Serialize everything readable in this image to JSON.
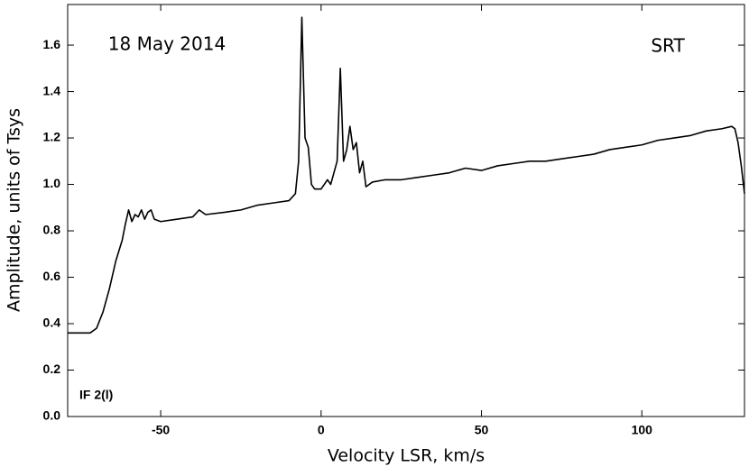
{
  "chart_data": {
    "type": "line",
    "xlabel": "Velocity LSR, km/s",
    "ylabel": "Amplitude, units of Tsys",
    "annotations": [
      "18 May 2014",
      "SRT",
      "IF 2(l)"
    ],
    "x": [
      -79,
      -72,
      -70,
      -68,
      -66,
      -64,
      -62,
      -61,
      -60,
      -59,
      -58,
      -57,
      -56,
      -55,
      -54,
      -53,
      -52,
      -50,
      -45,
      -40,
      -38,
      -36,
      -30,
      -25,
      -20,
      -15,
      -10,
      -8,
      -7,
      -6,
      -5,
      -4,
      -3,
      -2,
      0,
      2,
      3,
      5,
      6,
      7,
      8,
      9,
      10,
      11,
      12,
      13,
      14,
      16,
      20,
      25,
      30,
      35,
      40,
      45,
      50,
      55,
      60,
      65,
      70,
      75,
      80,
      85,
      90,
      95,
      100,
      105,
      110,
      115,
      120,
      125,
      128,
      129,
      130,
      131,
      132
    ],
    "series": [
      {
        "name": "IF 2(l)",
        "color": "#000000",
        "values": [
          0.36,
          0.36,
          0.38,
          0.45,
          0.55,
          0.67,
          0.76,
          0.83,
          0.89,
          0.84,
          0.87,
          0.86,
          0.89,
          0.85,
          0.88,
          0.89,
          0.85,
          0.84,
          0.85,
          0.86,
          0.89,
          0.87,
          0.88,
          0.89,
          0.91,
          0.92,
          0.93,
          0.96,
          1.1,
          1.72,
          1.2,
          1.16,
          1.0,
          0.98,
          0.98,
          1.02,
          1.0,
          1.1,
          1.5,
          1.1,
          1.15,
          1.25,
          1.15,
          1.18,
          1.05,
          1.1,
          0.99,
          1.01,
          1.02,
          1.02,
          1.03,
          1.04,
          1.05,
          1.07,
          1.06,
          1.08,
          1.09,
          1.1,
          1.1,
          1.11,
          1.12,
          1.13,
          1.15,
          1.16,
          1.17,
          1.19,
          1.2,
          1.21,
          1.23,
          1.24,
          1.25,
          1.24,
          1.18,
          1.08,
          0.96
        ]
      }
    ],
    "xlim": [
      -79,
      132
    ],
    "ylim": [
      0,
      1.775
    ],
    "xticks": [
      -50,
      0,
      50,
      100
    ],
    "yticks": [
      {
        "value": 0,
        "label": "0.0"
      },
      0.2,
      0.4,
      0.6,
      0.8,
      {
        "value": 1,
        "label": "1.0"
      },
      1.2,
      1.4,
      1.6
    ],
    "grid": false
  }
}
